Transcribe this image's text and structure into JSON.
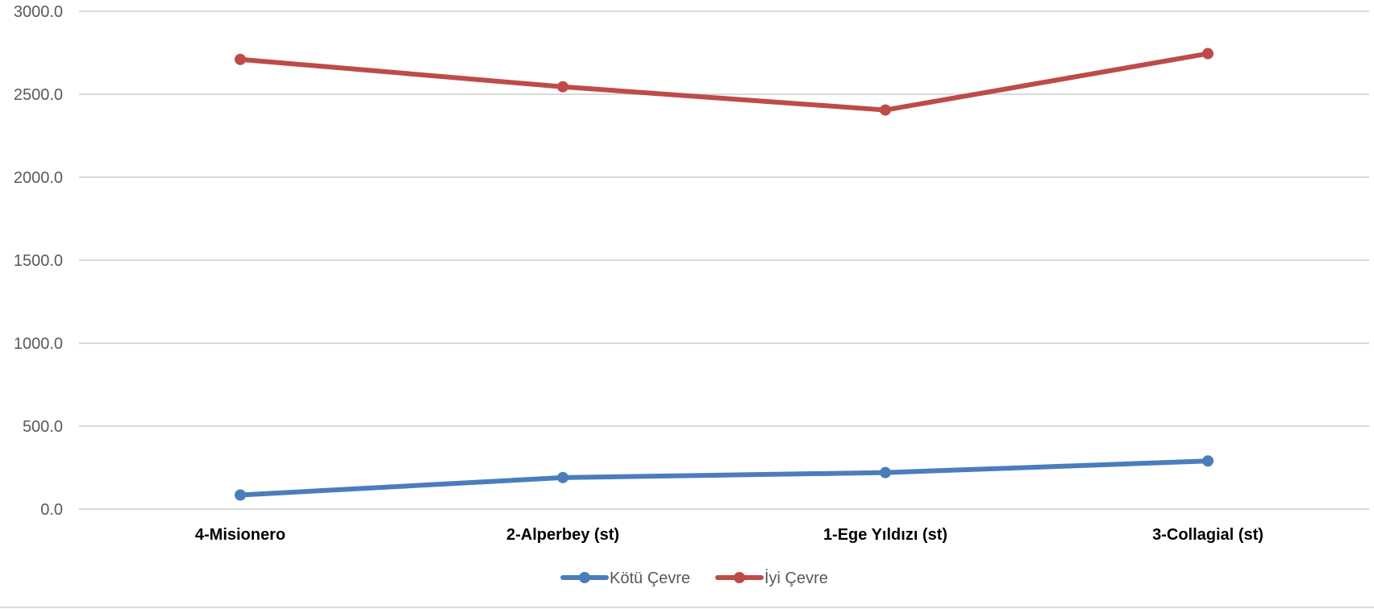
{
  "chart_data": {
    "type": "line",
    "categories": [
      "4-Misionero",
      "2-Alperbey (st)",
      "1-Ege Yıldızı (st)",
      "3-Collagial (st)"
    ],
    "series": [
      {
        "name": "Kötü Çevre",
        "values": [
          85,
          190,
          220,
          290
        ],
        "color": "#4a7ebb"
      },
      {
        "name": "İyi Çevre",
        "values": [
          2710,
          2545,
          2405,
          2745
        ],
        "color": "#be4b48"
      }
    ],
    "ylim": [
      0,
      3000
    ],
    "yticks": [
      "0.0",
      "500.0",
      "1000.0",
      "1500.0",
      "2000.0",
      "2500.0",
      "3000.0"
    ],
    "grid": true,
    "legend_position": "bottom",
    "title": "",
    "xlabel": "",
    "ylabel": ""
  }
}
